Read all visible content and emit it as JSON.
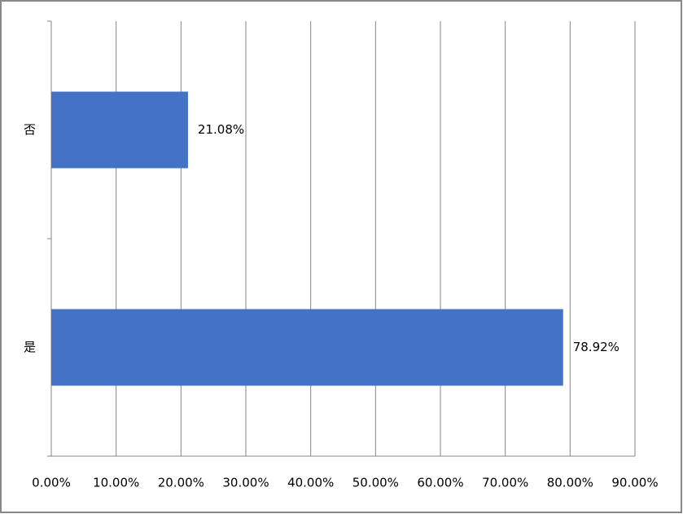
{
  "chart_data": {
    "type": "bar",
    "orientation": "horizontal",
    "categories": [
      "否",
      "是"
    ],
    "values": [
      21.08,
      78.92
    ],
    "value_labels": [
      "21.08%",
      "78.92%"
    ],
    "color": "#4472c4",
    "xlim": [
      0,
      90
    ],
    "xticks": [
      {
        "value": 0,
        "label": "0.00%"
      },
      {
        "value": 10,
        "label": "10.00%"
      },
      {
        "value": 20,
        "label": "20.00%"
      },
      {
        "value": 30,
        "label": "30.00%"
      },
      {
        "value": 40,
        "label": "40.00%"
      },
      {
        "value": 50,
        "label": "50.00%"
      },
      {
        "value": 60,
        "label": "60.00%"
      },
      {
        "value": 70,
        "label": "70.00%"
      },
      {
        "value": 80,
        "label": "80.00%"
      },
      {
        "value": 90,
        "label": "90.00%"
      }
    ],
    "grid": true
  }
}
